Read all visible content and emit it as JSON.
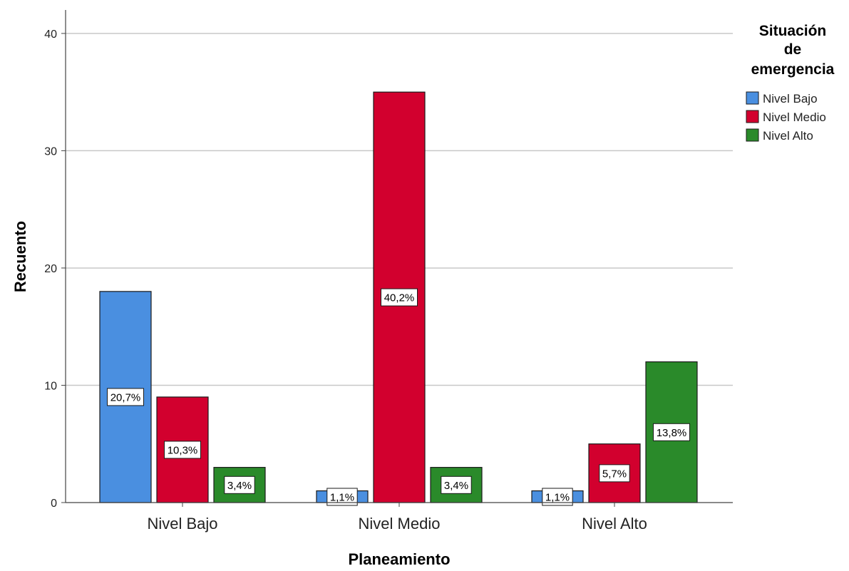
{
  "chart_data": {
    "type": "bar",
    "xlabel": "Planeamiento",
    "ylabel": "Recuento",
    "ylim": [
      0,
      42
    ],
    "yticks": [
      0,
      10,
      20,
      30,
      40
    ],
    "grid": true,
    "categories": [
      "Nivel Bajo",
      "Nivel Medio",
      "Nivel Alto"
    ],
    "legend": {
      "title_lines": [
        "Situación",
        "de",
        "emergencia"
      ],
      "placement": "right"
    },
    "series": [
      {
        "name": "Nivel Bajo",
        "color": "#4A8FE0",
        "values": [
          18,
          1,
          1
        ],
        "labels": [
          "20,7%",
          "1,1%",
          "1,1%"
        ]
      },
      {
        "name": "Nivel Medio",
        "color": "#D2002E",
        "values": [
          9,
          35,
          5
        ],
        "labels": [
          "10,3%",
          "40,2%",
          "5,7%"
        ]
      },
      {
        "name": "Nivel Alto",
        "color": "#2A8A2A",
        "values": [
          3,
          3,
          12
        ],
        "labels": [
          "3,4%",
          "3,4%",
          "13,8%"
        ]
      }
    ]
  }
}
